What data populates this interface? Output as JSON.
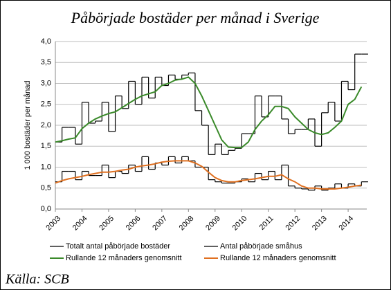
{
  "chart_data": {
    "type": "line",
    "title": "Påbörjade bostäder per månad i Sverige",
    "ylabel": "1 000 bostäder per månad",
    "source": "Källa: SCB",
    "x": [
      2003,
      2003.25,
      2003.5,
      2003.75,
      2004,
      2004.25,
      2004.5,
      2004.75,
      2005,
      2005.25,
      2005.5,
      2005.75,
      2006,
      2006.25,
      2006.5,
      2006.75,
      2007,
      2007.25,
      2007.5,
      2007.75,
      2008,
      2008.25,
      2008.5,
      2008.75,
      2009,
      2009.25,
      2009.5,
      2009.75,
      2010,
      2010.25,
      2010.5,
      2010.75,
      2011,
      2011.25,
      2011.5,
      2011.75,
      2012,
      2012.25,
      2012.5,
      2012.75,
      2013,
      2013.25,
      2013.5,
      2013.75,
      2014,
      2014.25,
      2014.5
    ],
    "series": [
      {
        "name": "Totalt antal påbörjade bostäder",
        "color": "#000000",
        "step": true,
        "values": [
          1.6,
          1.95,
          1.95,
          1.55,
          2.55,
          2.05,
          2.1,
          2.55,
          1.85,
          2.7,
          2.4,
          3.05,
          2.5,
          3.15,
          2.65,
          3.15,
          2.95,
          3.2,
          3.1,
          3.2,
          3.25,
          2.35,
          2.0,
          1.3,
          1.55,
          1.3,
          1.4,
          1.45,
          1.8,
          1.8,
          2.7,
          2.2,
          2.7,
          2.7,
          2.15,
          1.8,
          1.9,
          1.9,
          2.15,
          1.5,
          2.3,
          2.55,
          2.1,
          3.05,
          2.85,
          3.7,
          3.7
        ]
      },
      {
        "name": "Antal påbörjade småhus",
        "color": "#000000",
        "step": true,
        "values": [
          0.65,
          0.9,
          0.9,
          0.7,
          0.9,
          0.8,
          0.8,
          1.05,
          0.75,
          0.9,
          0.85,
          1.05,
          0.9,
          1.25,
          0.95,
          1.1,
          1.05,
          1.25,
          1.1,
          1.25,
          1.15,
          1.0,
          1.0,
          0.7,
          0.65,
          0.62,
          0.62,
          0.65,
          0.72,
          0.65,
          0.85,
          0.7,
          0.9,
          0.7,
          1.05,
          0.55,
          0.5,
          0.48,
          0.45,
          0.55,
          0.45,
          0.5,
          0.6,
          0.5,
          0.6,
          0.55,
          0.65
        ]
      },
      {
        "name": "Rullande 12 månaders genomsnitt",
        "color": "#3a8a2a",
        "step": false,
        "values": [
          1.6,
          1.63,
          1.67,
          1.7,
          1.92,
          2.05,
          2.15,
          2.22,
          2.28,
          2.32,
          2.42,
          2.52,
          2.62,
          2.7,
          2.75,
          2.8,
          2.95,
          3.0,
          3.08,
          3.1,
          3.15,
          3.0,
          2.7,
          2.35,
          2.0,
          1.65,
          1.48,
          1.47,
          1.47,
          1.6,
          1.9,
          2.1,
          2.25,
          2.45,
          2.45,
          2.4,
          2.2,
          2.05,
          1.9,
          1.82,
          1.78,
          1.82,
          1.95,
          2.1,
          2.5,
          2.62,
          2.92
        ]
      },
      {
        "name": "Rullande 12 månaders genomsnitt",
        "color": "#e07020",
        "step": false,
        "values": [
          0.62,
          0.68,
          0.72,
          0.75,
          0.78,
          0.82,
          0.85,
          0.88,
          0.88,
          0.9,
          0.93,
          0.95,
          1.0,
          1.03,
          1.05,
          1.08,
          1.12,
          1.14,
          1.15,
          1.15,
          1.15,
          1.1,
          1.02,
          0.88,
          0.75,
          0.68,
          0.65,
          0.65,
          0.68,
          0.7,
          0.72,
          0.75,
          0.78,
          0.78,
          0.82,
          0.72,
          0.65,
          0.55,
          0.5,
          0.5,
          0.48,
          0.48,
          0.48,
          0.5,
          0.52,
          0.55,
          0.57
        ]
      }
    ],
    "xlim": [
      2003,
      2014.7
    ],
    "xticks": [
      2003,
      2004,
      2005,
      2006,
      2007,
      2008,
      2009,
      2010,
      2011,
      2012,
      2013,
      2014
    ],
    "ylim": [
      0,
      4
    ],
    "yticks": [
      {
        "value": 0,
        "label": "0,0"
      },
      {
        "value": 0.5,
        "label": "0,5"
      },
      {
        "value": 1,
        "label": "1,0"
      },
      {
        "value": 1.5,
        "label": "1,5"
      },
      {
        "value": 2,
        "label": "2,0"
      },
      {
        "value": 2.5,
        "label": "2,5"
      },
      {
        "value": 3,
        "label": "3,0"
      },
      {
        "value": 3.5,
        "label": "3,5"
      },
      {
        "value": 4,
        "label": "4,0"
      }
    ],
    "grid": true
  }
}
